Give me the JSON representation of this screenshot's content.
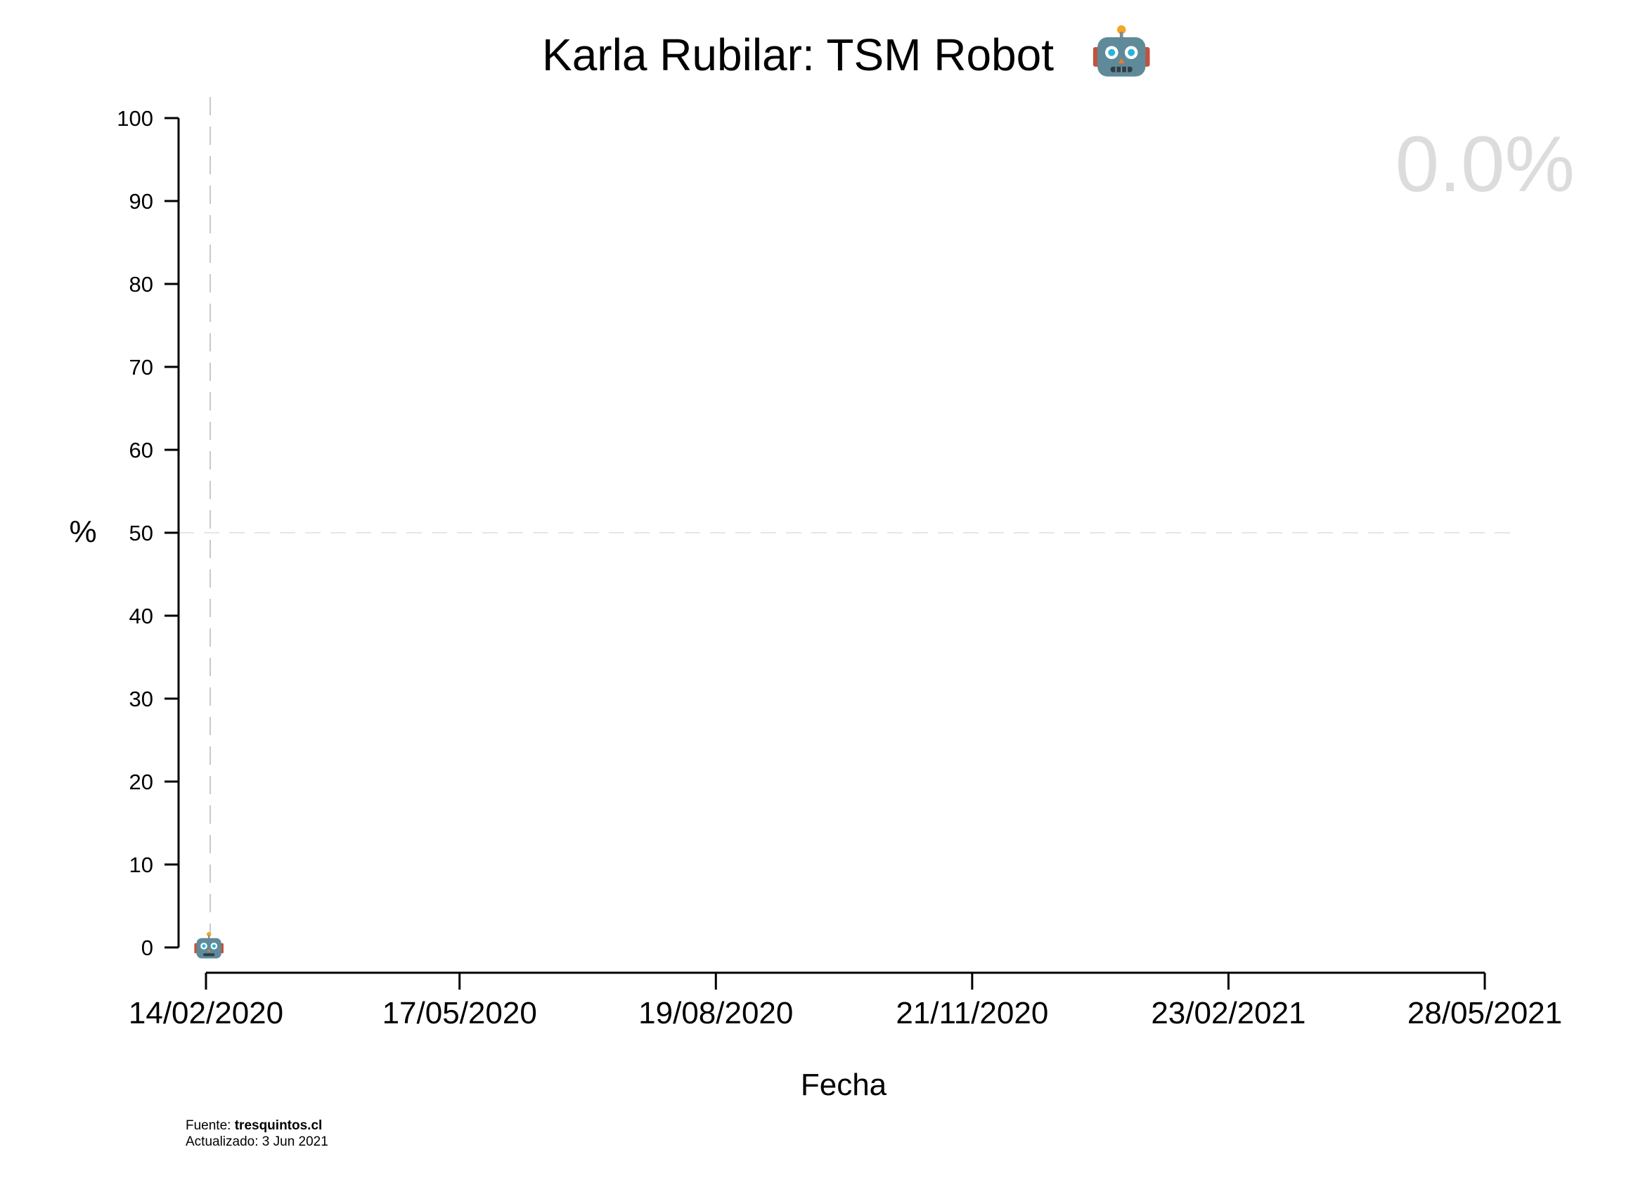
{
  "chart_data": {
    "type": "line",
    "title": "Karla Rubilar: TSM Robot",
    "title_icon": "robot-icon",
    "xlabel": "Fecha",
    "ylabel": "%",
    "x_tick_labels": [
      "14/02/2020",
      "17/05/2020",
      "19/08/2020",
      "21/11/2020",
      "23/02/2021",
      "28/05/2021"
    ],
    "x_ticks_dates": [
      "2020-02-14",
      "2020-05-17",
      "2020-08-19",
      "2020-11-21",
      "2021-02-23",
      "2021-05-28"
    ],
    "y_ticks": [
      0,
      10,
      20,
      30,
      40,
      50,
      60,
      70,
      80,
      90,
      100
    ],
    "ylim": [
      0,
      100
    ],
    "xlim": [
      "2020-02-14",
      "2021-05-28"
    ],
    "reference_line_y": 50,
    "reference_line_x": "2020-02-14",
    "series": [
      {
        "marker": "robot-icon",
        "x": [
          "2020-02-14"
        ],
        "y": [
          0
        ]
      }
    ],
    "current_value_label": "0.0%",
    "grid": false
  },
  "footer": {
    "source_prefix": "Fuente: ",
    "source_name": "tresquintos.cl",
    "updated": "Actualizado: 3 Jun 2021"
  },
  "colors": {
    "axis": "#000000",
    "reference_line": "#c8c8c8",
    "big_value": "#dcdcdc"
  }
}
